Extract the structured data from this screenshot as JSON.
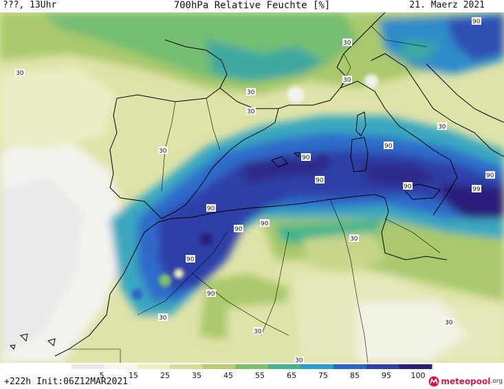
{
  "header": {
    "left": "???, 13Uhr",
    "title": "700hPa Relative Feuchte [%]",
    "date": "21. Maerz 2021"
  },
  "footer": {
    "run": "+222h  Init:06Z12MAR2021"
  },
  "logo": {
    "name": "meteopool",
    "tld": ".org",
    "icon": "meteopool-logo-icon"
  },
  "legend": {
    "ticks": [
      "5",
      "15",
      "25",
      "35",
      "45",
      "55",
      "65",
      "75",
      "85",
      "95",
      "100"
    ],
    "colors": [
      "#e8e8e8",
      "#f6f6ea",
      "#ecedc0",
      "#d8dc9a",
      "#b9cc72",
      "#7ec06a",
      "#45b48c",
      "#2c9ccb",
      "#2e66c8",
      "#2e3fa6",
      "#2c1f78"
    ]
  },
  "map": {
    "contour_labels": [
      {
        "text": "90"
      },
      {
        "text": "30"
      },
      {
        "text": "30"
      },
      {
        "text": "30"
      },
      {
        "text": "30"
      },
      {
        "text": "30"
      },
      {
        "text": "30"
      },
      {
        "text": "30"
      },
      {
        "text": "90"
      },
      {
        "text": "90"
      },
      {
        "text": "90"
      },
      {
        "text": "90"
      },
      {
        "text": "90"
      },
      {
        "text": "99"
      },
      {
        "text": "90"
      },
      {
        "text": "90"
      },
      {
        "text": "90"
      },
      {
        "text": "90"
      },
      {
        "text": "30"
      },
      {
        "text": "30"
      },
      {
        "text": "30"
      },
      {
        "text": "30"
      },
      {
        "text": "30"
      }
    ]
  }
}
